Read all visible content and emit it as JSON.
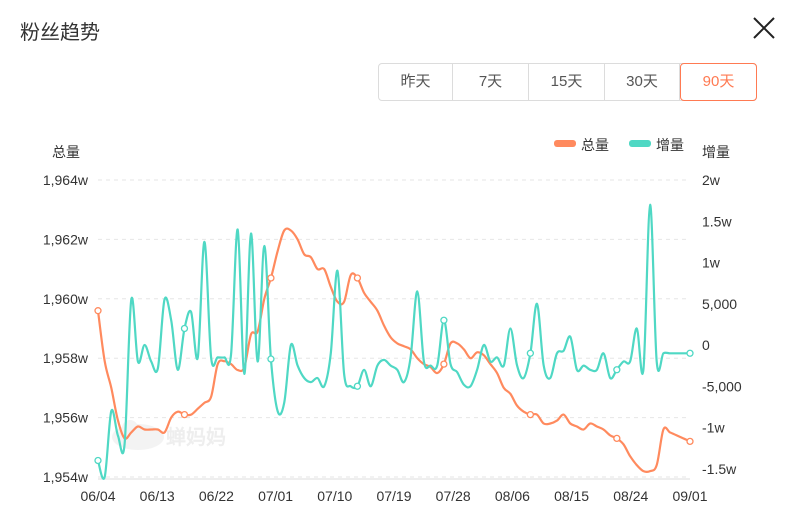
{
  "header": {
    "title": "粉丝趋势"
  },
  "tabs": [
    {
      "label": "昨天",
      "active": false
    },
    {
      "label": "7天",
      "active": false
    },
    {
      "label": "15天",
      "active": false
    },
    {
      "label": "30天",
      "active": false
    },
    {
      "label": "90天",
      "active": true
    }
  ],
  "colors": {
    "total": "#ff8a5e",
    "increase": "#4fd8c4",
    "accent": "#ff7a52"
  },
  "watermark": "蝉妈妈",
  "chart_data": {
    "type": "line",
    "left_axis_label": "总量",
    "right_axis_label": "增量",
    "legend": [
      "总量",
      "增量"
    ],
    "legend_position": "top-right",
    "grid": true,
    "x_ticks": [
      "06/04",
      "06/13",
      "06/22",
      "07/01",
      "07/10",
      "07/19",
      "07/28",
      "08/06",
      "08/15",
      "08/24",
      "09/01"
    ],
    "y_left_ticks": [
      {
        "value": 19640000,
        "label": "1,964w"
      },
      {
        "value": 19620000,
        "label": "1,962w"
      },
      {
        "value": 19600000,
        "label": "1,960w"
      },
      {
        "value": 19580000,
        "label": "1,958w"
      },
      {
        "value": 19560000,
        "label": "1,956w"
      },
      {
        "value": 19540000,
        "label": "1,954w"
      }
    ],
    "y_right_ticks": [
      {
        "value": 20000,
        "label": "2w"
      },
      {
        "value": 15000,
        "label": "1.5w"
      },
      {
        "value": 10000,
        "label": "1w"
      },
      {
        "value": 5000,
        "label": "5,000"
      },
      {
        "value": 0,
        "label": "0"
      },
      {
        "value": -5000,
        "label": "-5,000"
      },
      {
        "value": -10000,
        "label": "-1w"
      },
      {
        "value": -15000,
        "label": "-1.5w"
      }
    ],
    "ylim_left": [
      19540000,
      19640000
    ],
    "ylim_right": [
      -16000,
      20000
    ],
    "series": [
      {
        "name": "总量",
        "axis": "left",
        "values": [
          19596000,
          19579000,
          19570000,
          19559000,
          19553000,
          19555000,
          19557000,
          19556000,
          19556000,
          19556000,
          19555000,
          19560000,
          19562000,
          19561000,
          19561000,
          19563000,
          19565000,
          19567000,
          19578000,
          19579000,
          19578000,
          19576000,
          19577000,
          19588000,
          19589000,
          19600000,
          19607000,
          19616000,
          19623000,
          19623000,
          19620000,
          19615000,
          19614000,
          19610000,
          19610000,
          19604000,
          19599000,
          19599000,
          19608000,
          19607000,
          19602000,
          19599000,
          19596000,
          19591000,
          19587000,
          19585000,
          19584000,
          19583000,
          19580000,
          19578000,
          19577000,
          19575000,
          19578000,
          19585000,
          19585000,
          19583000,
          19580000,
          19582000,
          19581000,
          19578000,
          19575000,
          19570000,
          19568000,
          19564000,
          19562000,
          19561000,
          19561000,
          19558000,
          19558000,
          19559000,
          19561000,
          19558000,
          19557000,
          19556000,
          19558000,
          19557000,
          19556000,
          19554000,
          19553000,
          19551000,
          19547000,
          19544000,
          19542000,
          19542000,
          19544000,
          19556000,
          19555000,
          19554000,
          19553000,
          19552000
        ]
      },
      {
        "name": "增量",
        "axis": "right",
        "values": [
          -14000,
          -16000,
          -8000,
          -11000,
          -12000,
          5500,
          -2000,
          0,
          -2000,
          -2800,
          5500,
          3000,
          -3000,
          2000,
          4000,
          -1500,
          12500,
          -1500,
          -1500,
          -1500,
          -1200,
          14000,
          -3500,
          13500,
          -2000,
          12000,
          -1700,
          -8000,
          -7000,
          0,
          -2500,
          -4000,
          -4500,
          -4000,
          -5000,
          -1000,
          9000,
          -3500,
          -5000,
          -5000,
          -3000,
          -5000,
          -2500,
          -1800,
          -2500,
          -3000,
          -4500,
          -1500,
          6500,
          -2000,
          -2500,
          -2500,
          3000,
          -2300,
          -3300,
          -4800,
          -5000,
          -3000,
          0,
          -2000,
          -1500,
          -2500,
          2000,
          -2500,
          -4000,
          -1000,
          5000,
          -2500,
          -4000,
          -1000,
          -700,
          1000,
          -3000,
          -2500,
          -3000,
          -3000,
          -1000,
          -4000,
          -3000,
          -2000,
          -2000,
          2000,
          -3000,
          17000,
          -2000,
          -1000,
          -1000,
          -1000,
          -1000,
          -1000
        ]
      }
    ]
  }
}
